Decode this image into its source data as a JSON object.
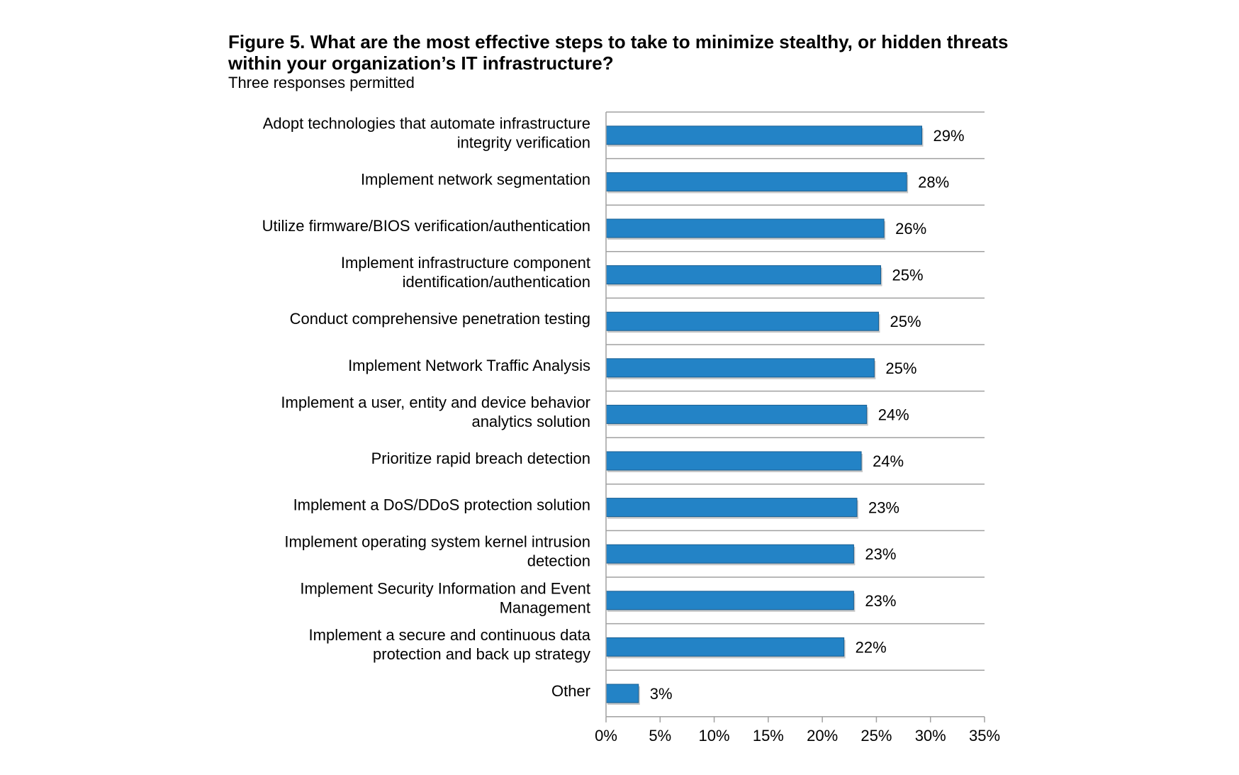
{
  "title": "Figure 5. What are the most effective steps to take to minimize stealthy, or hidden threats within your organization’s IT infrastructure?",
  "subtitle": "Three responses permitted",
  "colors": {
    "bar": "#2383c6",
    "bar_edge": "#1a5f91",
    "grid": "#a0a0a0"
  },
  "chart_data": {
    "type": "bar",
    "orientation": "horizontal",
    "categories": [
      [
        "Adopt technologies that automate infrastructure",
        "integrity verification"
      ],
      [
        "Implement network segmentation"
      ],
      [
        "Utilize firmware/BIOS verification/authentication"
      ],
      [
        "Implement infrastructure component",
        "identification/authentication"
      ],
      [
        "Conduct comprehensive penetration testing"
      ],
      [
        "Implement Network Traffic Analysis"
      ],
      [
        "Implement a user, entity and device behavior",
        "analytics solution"
      ],
      [
        "Prioritize rapid breach detection"
      ],
      [
        "Implement a DoS/DDoS protection solution"
      ],
      [
        "Implement operating system kernel intrusion",
        "detection"
      ],
      [
        "Implement Security Information and Event",
        "Management"
      ],
      [
        "Implement a secure and continuous data",
        "protection and back up strategy"
      ],
      [
        "Other"
      ]
    ],
    "values": [
      29.2,
      27.8,
      25.7,
      25.4,
      25.2,
      24.8,
      24.1,
      23.6,
      23.2,
      22.9,
      22.9,
      22.0,
      3.0
    ],
    "value_labels": [
      "29%",
      "28%",
      "26%",
      "25%",
      "25%",
      "25%",
      "24%",
      "24%",
      "23%",
      "23%",
      "23%",
      "22%",
      "3%"
    ],
    "xlim": [
      0,
      35
    ],
    "xticks": [
      0,
      5,
      10,
      15,
      20,
      25,
      30,
      35
    ],
    "xtick_labels": [
      "0%",
      "5%",
      "10%",
      "15%",
      "20%",
      "25%",
      "30%",
      "35%"
    ],
    "grid": "horizontal separators between categories",
    "legend": "none"
  }
}
